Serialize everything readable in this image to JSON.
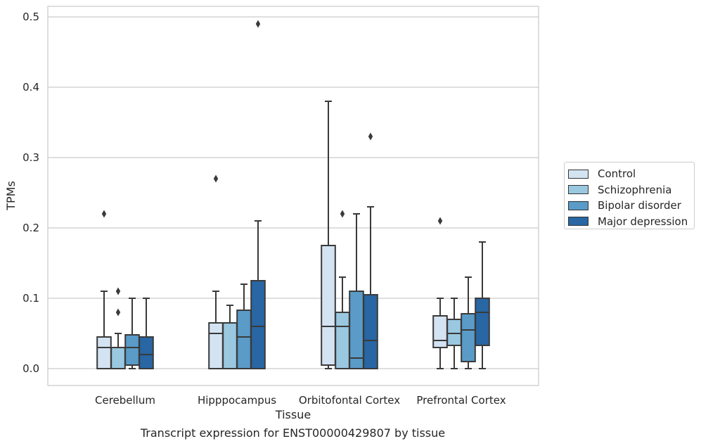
{
  "chart_data": {
    "type": "box",
    "title": "Transcript expression for ENST00000429807 by tissue",
    "xlabel": "Tissue",
    "ylabel": "TPMs",
    "ylim": [
      -0.023,
      0.515
    ],
    "yticks": [
      "0.0",
      "0.1",
      "0.2",
      "0.3",
      "0.4",
      "0.5"
    ],
    "categories": [
      "Cerebellum",
      "Hipppocampus",
      "Orbitofontal Cortex",
      "Prefrontal Cortex"
    ],
    "grid": true,
    "legend_position": "right",
    "series": [
      {
        "name": "Control",
        "color": "#d3e3f2",
        "boxes": [
          {
            "min": 0.0,
            "q1": 0.0,
            "median": 0.03,
            "q3": 0.045,
            "max": 0.11,
            "outliers": [
              0.22
            ]
          },
          {
            "min": 0.0,
            "q1": 0.0,
            "median": 0.05,
            "q3": 0.065,
            "max": 0.11,
            "outliers": [
              0.27
            ]
          },
          {
            "min": 0.0,
            "q1": 0.005,
            "median": 0.06,
            "q3": 0.175,
            "max": 0.38,
            "outliers": []
          },
          {
            "min": 0.0,
            "q1": 0.03,
            "median": 0.04,
            "q3": 0.075,
            "max": 0.1,
            "outliers": [
              0.21
            ]
          }
        ]
      },
      {
        "name": "Schizophrenia",
        "color": "#9ac8e0",
        "boxes": [
          {
            "min": 0.0,
            "q1": 0.0,
            "median": 0.03,
            "q3": 0.03,
            "max": 0.05,
            "outliers": [
              0.08,
              0.11
            ]
          },
          {
            "min": 0.0,
            "q1": 0.0,
            "median": 0.065,
            "q3": 0.065,
            "max": 0.09,
            "outliers": []
          },
          {
            "min": 0.0,
            "q1": 0.0,
            "median": 0.06,
            "q3": 0.08,
            "max": 0.13,
            "outliers": [
              0.22
            ]
          },
          {
            "min": 0.0,
            "q1": 0.033,
            "median": 0.05,
            "q3": 0.07,
            "max": 0.1,
            "outliers": []
          }
        ]
      },
      {
        "name": "Bipolar disorder",
        "color": "#5a9bc8",
        "boxes": [
          {
            "min": 0.0,
            "q1": 0.005,
            "median": 0.03,
            "q3": 0.048,
            "max": 0.1,
            "outliers": []
          },
          {
            "min": 0.0,
            "q1": 0.0,
            "median": 0.045,
            "q3": 0.083,
            "max": 0.12,
            "outliers": []
          },
          {
            "min": 0.0,
            "q1": 0.0,
            "median": 0.015,
            "q3": 0.11,
            "max": 0.22,
            "outliers": []
          },
          {
            "min": 0.0,
            "q1": 0.01,
            "median": 0.055,
            "q3": 0.078,
            "max": 0.13,
            "outliers": []
          }
        ]
      },
      {
        "name": "Major depression",
        "color": "#2866a4",
        "boxes": [
          {
            "min": 0.0,
            "q1": 0.0,
            "median": 0.02,
            "q3": 0.045,
            "max": 0.1,
            "outliers": []
          },
          {
            "min": 0.0,
            "q1": 0.0,
            "median": 0.06,
            "q3": 0.125,
            "max": 0.21,
            "outliers": [
              0.49
            ]
          },
          {
            "min": 0.0,
            "q1": 0.0,
            "median": 0.04,
            "q3": 0.105,
            "max": 0.23,
            "outliers": [
              0.33
            ]
          },
          {
            "min": 0.0,
            "q1": 0.033,
            "median": 0.08,
            "q3": 0.1,
            "max": 0.18,
            "outliers": []
          }
        ]
      }
    ]
  }
}
